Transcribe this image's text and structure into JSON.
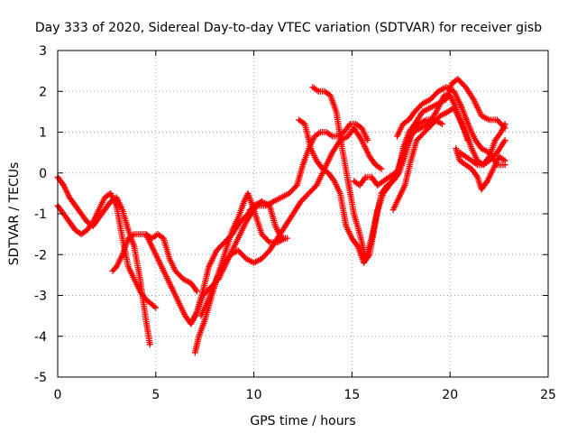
{
  "chart_data": {
    "type": "scatter",
    "title": "Day 333 of 2020, Sidereal Day-to-day VTEC variation (SDTVAR) for receiver gisb",
    "xlabel": "GPS time / hours",
    "ylabel": "SDTVAR / TECUs",
    "xlim": [
      0,
      25
    ],
    "ylim": [
      -5,
      3
    ],
    "x_ticks": [
      0,
      5,
      10,
      15,
      20,
      25
    ],
    "y_ticks": [
      -5,
      -4,
      -3,
      -2,
      -1,
      0,
      1,
      2,
      3
    ],
    "x_tick_labels": [
      "0",
      "5",
      "10",
      "15",
      "20",
      "25"
    ],
    "y_tick_labels": [
      "-5",
      "-4",
      "-3",
      "-2",
      "-1",
      "0",
      "1",
      "2",
      "3"
    ],
    "grid": true,
    "marker": "+",
    "color": "#ff0000",
    "series": [
      {
        "points": [
          [
            0,
            -0.1
          ],
          [
            0.3,
            -0.3
          ],
          [
            0.6,
            -0.6
          ],
          [
            0.9,
            -0.8
          ],
          [
            1.2,
            -1.0
          ],
          [
            1.5,
            -1.2
          ],
          [
            1.8,
            -1.3
          ],
          [
            2.1,
            -1.1
          ],
          [
            2.4,
            -0.9
          ],
          [
            2.7,
            -0.7
          ],
          [
            3.0,
            -0.6
          ],
          [
            3.3,
            -0.9
          ],
          [
            3.6,
            -1.4
          ],
          [
            3.9,
            -1.8
          ],
          [
            4.2,
            -2.6
          ],
          [
            4.5,
            -3.6
          ],
          [
            4.7,
            -4.2
          ]
        ]
      },
      {
        "points": [
          [
            0,
            -0.8
          ],
          [
            0.3,
            -1.0
          ],
          [
            0.6,
            -1.2
          ],
          [
            0.9,
            -1.4
          ],
          [
            1.2,
            -1.5
          ],
          [
            1.5,
            -1.4
          ],
          [
            1.8,
            -1.2
          ],
          [
            2.1,
            -0.9
          ],
          [
            2.4,
            -0.6
          ],
          [
            2.7,
            -0.5
          ],
          [
            3.0,
            -0.8
          ],
          [
            3.3,
            -1.6
          ],
          [
            3.6,
            -2.3
          ],
          [
            3.9,
            -2.6
          ],
          [
            4.2,
            -2.9
          ],
          [
            4.5,
            -3.1
          ],
          [
            5.0,
            -3.3
          ]
        ]
      },
      {
        "points": [
          [
            2.8,
            -2.4
          ],
          [
            3.0,
            -2.3
          ],
          [
            3.3,
            -2.0
          ],
          [
            3.6,
            -1.6
          ],
          [
            3.9,
            -1.5
          ],
          [
            4.2,
            -1.5
          ],
          [
            4.5,
            -1.5
          ],
          [
            4.8,
            -1.6
          ],
          [
            5.1,
            -1.5
          ],
          [
            5.4,
            -1.6
          ],
          [
            5.7,
            -2.1
          ],
          [
            6.0,
            -2.4
          ],
          [
            6.4,
            -2.6
          ],
          [
            6.8,
            -2.7
          ],
          [
            7.1,
            -2.9
          ]
        ]
      },
      {
        "points": [
          [
            4.5,
            -1.5
          ],
          [
            4.8,
            -1.8
          ],
          [
            5.1,
            -2.1
          ],
          [
            5.5,
            -2.5
          ],
          [
            5.9,
            -2.9
          ],
          [
            6.2,
            -3.2
          ],
          [
            6.5,
            -3.5
          ],
          [
            6.8,
            -3.7
          ],
          [
            7.1,
            -3.4
          ],
          [
            7.4,
            -2.9
          ],
          [
            7.7,
            -2.3
          ],
          [
            8.1,
            -1.9
          ],
          [
            8.5,
            -1.7
          ],
          [
            8.9,
            -1.5
          ],
          [
            9.3,
            -1.2
          ],
          [
            9.7,
            -1.0
          ],
          [
            10.0,
            -0.8
          ],
          [
            10.4,
            -0.7
          ]
        ]
      },
      {
        "points": [
          [
            6.9,
            -3.6
          ],
          [
            7.1,
            -3.4
          ],
          [
            7.4,
            -3.0
          ],
          [
            7.8,
            -2.8
          ],
          [
            8.2,
            -2.6
          ],
          [
            8.6,
            -2.2
          ],
          [
            9.0,
            -1.8
          ],
          [
            9.3,
            -1.5
          ],
          [
            9.6,
            -1.2
          ],
          [
            10.0,
            -0.9
          ],
          [
            10.4,
            -0.7
          ],
          [
            10.8,
            -0.8
          ],
          [
            11.1,
            -1.3
          ],
          [
            11.4,
            -1.6
          ],
          [
            11.7,
            -1.6
          ]
        ]
      },
      {
        "points": [
          [
            7.0,
            -4.4
          ],
          [
            7.2,
            -4.0
          ],
          [
            7.5,
            -3.6
          ],
          [
            7.8,
            -3.1
          ],
          [
            8.1,
            -2.6
          ],
          [
            8.5,
            -2.0
          ],
          [
            8.9,
            -1.4
          ],
          [
            9.2,
            -1.1
          ],
          [
            9.5,
            -0.7
          ],
          [
            9.7,
            -0.5
          ],
          [
            10.0,
            -0.9
          ],
          [
            10.4,
            -1.5
          ],
          [
            10.8,
            -1.7
          ],
          [
            11.2,
            -1.7
          ],
          [
            11.6,
            -1.6
          ]
        ]
      },
      {
        "points": [
          [
            7.3,
            -3.5
          ],
          [
            7.6,
            -3.2
          ],
          [
            8.0,
            -2.7
          ],
          [
            8.4,
            -2.3
          ],
          [
            8.8,
            -2.0
          ],
          [
            9.2,
            -1.9
          ],
          [
            9.6,
            -2.1
          ],
          [
            10.0,
            -2.2
          ],
          [
            10.4,
            -2.1
          ],
          [
            10.8,
            -1.9
          ],
          [
            11.2,
            -1.6
          ],
          [
            11.6,
            -1.3
          ],
          [
            12.0,
            -1.0
          ],
          [
            12.4,
            -0.7
          ],
          [
            12.8,
            -0.5
          ],
          [
            13.2,
            -0.3
          ],
          [
            13.6,
            0.1
          ],
          [
            14.0,
            0.5
          ],
          [
            14.4,
            0.8
          ],
          [
            14.8,
            0.9
          ],
          [
            15.1,
            1.1
          ],
          [
            15.5,
            0.8
          ],
          [
            15.9,
            0.4
          ],
          [
            16.2,
            0.2
          ],
          [
            16.5,
            0.1
          ]
        ]
      },
      {
        "points": [
          [
            9.8,
            -0.9
          ],
          [
            10.2,
            -0.8
          ],
          [
            10.6,
            -0.8
          ],
          [
            11.0,
            -0.7
          ],
          [
            11.4,
            -0.6
          ],
          [
            11.8,
            -0.5
          ],
          [
            12.2,
            -0.3
          ],
          [
            12.5,
            0.2
          ],
          [
            12.8,
            0.6
          ],
          [
            13.1,
            0.9
          ],
          [
            13.4,
            1.0
          ],
          [
            13.7,
            1.0
          ],
          [
            14.0,
            0.9
          ],
          [
            14.3,
            0.9
          ],
          [
            14.6,
            1.0
          ],
          [
            14.9,
            1.2
          ],
          [
            15.2,
            1.2
          ],
          [
            15.5,
            1.1
          ],
          [
            15.8,
            0.8
          ]
        ]
      },
      {
        "points": [
          [
            12.3,
            1.3
          ],
          [
            12.6,
            1.2
          ],
          [
            12.9,
            0.6
          ],
          [
            13.2,
            0.3
          ],
          [
            13.5,
            0.1
          ],
          [
            13.8,
            0.0
          ],
          [
            14.1,
            -0.2
          ],
          [
            14.4,
            -0.5
          ],
          [
            14.7,
            -1.3
          ],
          [
            15.0,
            -1.6
          ],
          [
            15.3,
            -1.8
          ],
          [
            15.6,
            -2.2
          ],
          [
            15.9,
            -2.0
          ],
          [
            16.2,
            -1.2
          ],
          [
            16.5,
            -0.5
          ],
          [
            16.8,
            -0.3
          ],
          [
            17.1,
            -0.2
          ],
          [
            17.4,
            0.0
          ],
          [
            17.7,
            0.4
          ],
          [
            18.0,
            0.9
          ],
          [
            18.4,
            1.2
          ],
          [
            18.8,
            1.3
          ],
          [
            19.2,
            1.3
          ],
          [
            19.6,
            1.2
          ]
        ]
      },
      {
        "points": [
          [
            13.0,
            2.1
          ],
          [
            13.3,
            2.0
          ],
          [
            13.6,
            2.0
          ],
          [
            13.9,
            1.9
          ],
          [
            14.2,
            1.5
          ],
          [
            14.5,
            0.6
          ],
          [
            14.8,
            -0.2
          ],
          [
            15.1,
            -1.0
          ],
          [
            15.4,
            -1.5
          ],
          [
            15.7,
            -2.1
          ],
          [
            16.0,
            -1.6
          ],
          [
            16.3,
            -0.9
          ],
          [
            16.6,
            -0.5
          ],
          [
            16.9,
            -0.3
          ],
          [
            17.2,
            -0.1
          ],
          [
            17.5,
            0.3
          ],
          [
            17.8,
            0.7
          ],
          [
            18.1,
            1.0
          ],
          [
            18.5,
            1.1
          ],
          [
            18.9,
            1.2
          ],
          [
            19.3,
            1.5
          ],
          [
            19.7,
            1.9
          ],
          [
            20.0,
            1.9
          ],
          [
            20.3,
            1.6
          ],
          [
            20.6,
            1.2
          ],
          [
            20.9,
            0.8
          ]
        ]
      },
      {
        "points": [
          [
            15.1,
            -0.2
          ],
          [
            15.4,
            -0.3
          ],
          [
            15.7,
            -0.1
          ],
          [
            16.0,
            -0.1
          ],
          [
            16.3,
            -0.3
          ],
          [
            16.6,
            -0.2
          ],
          [
            16.9,
            -0.1
          ],
          [
            17.2,
            0.0
          ],
          [
            17.4,
            0.1
          ],
          [
            17.6,
            0.6
          ],
          [
            17.9,
            1.0
          ],
          [
            18.2,
            1.2
          ],
          [
            18.6,
            1.5
          ],
          [
            19.0,
            1.6
          ],
          [
            19.4,
            1.7
          ],
          [
            19.8,
            1.8
          ],
          [
            20.1,
            2.2
          ],
          [
            20.4,
            2.3
          ],
          [
            20.8,
            2.1
          ],
          [
            21.2,
            1.8
          ],
          [
            21.6,
            1.4
          ],
          [
            22.0,
            1.3
          ],
          [
            22.4,
            1.3
          ],
          [
            22.8,
            1.1
          ]
        ]
      },
      {
        "points": [
          [
            17.1,
            -0.9
          ],
          [
            17.4,
            -0.6
          ],
          [
            17.7,
            -0.3
          ],
          [
            18.0,
            0.3
          ],
          [
            18.3,
            0.8
          ],
          [
            18.7,
            1.0
          ],
          [
            19.1,
            1.2
          ],
          [
            19.5,
            1.4
          ],
          [
            19.9,
            1.5
          ],
          [
            20.2,
            1.6
          ],
          [
            20.5,
            1.3
          ],
          [
            20.8,
            1.0
          ],
          [
            21.1,
            0.6
          ],
          [
            21.4,
            0.3
          ],
          [
            21.7,
            0.2
          ],
          [
            22.0,
            0.3
          ],
          [
            22.4,
            0.5
          ],
          [
            22.8,
            0.8
          ]
        ]
      },
      {
        "points": [
          [
            17.3,
            0.9
          ],
          [
            17.6,
            1.2
          ],
          [
            17.9,
            1.3
          ],
          [
            18.2,
            1.5
          ],
          [
            18.6,
            1.7
          ],
          [
            19.0,
            1.8
          ],
          [
            19.4,
            2.0
          ],
          [
            19.8,
            2.1
          ],
          [
            20.2,
            2.0
          ],
          [
            20.6,
            1.6
          ],
          [
            21.0,
            1.1
          ],
          [
            21.3,
            0.8
          ],
          [
            21.6,
            0.6
          ],
          [
            22.0,
            0.5
          ],
          [
            22.4,
            0.2
          ],
          [
            22.8,
            0.2
          ]
        ]
      },
      {
        "points": [
          [
            20.3,
            0.6
          ],
          [
            20.5,
            0.3
          ],
          [
            20.8,
            0.2
          ],
          [
            21.1,
            0.1
          ],
          [
            21.4,
            -0.1
          ],
          [
            21.6,
            -0.4
          ],
          [
            21.9,
            -0.2
          ],
          [
            22.2,
            0.1
          ],
          [
            22.5,
            0.4
          ],
          [
            22.8,
            0.3
          ]
        ]
      },
      {
        "points": [
          [
            20.5,
            0.5
          ],
          [
            20.8,
            0.4
          ],
          [
            21.1,
            0.3
          ],
          [
            21.4,
            0.2
          ],
          [
            21.7,
            0.2
          ],
          [
            22.0,
            0.4
          ],
          [
            22.3,
            0.8
          ],
          [
            22.6,
            1.0
          ],
          [
            22.8,
            1.2
          ]
        ]
      }
    ]
  }
}
